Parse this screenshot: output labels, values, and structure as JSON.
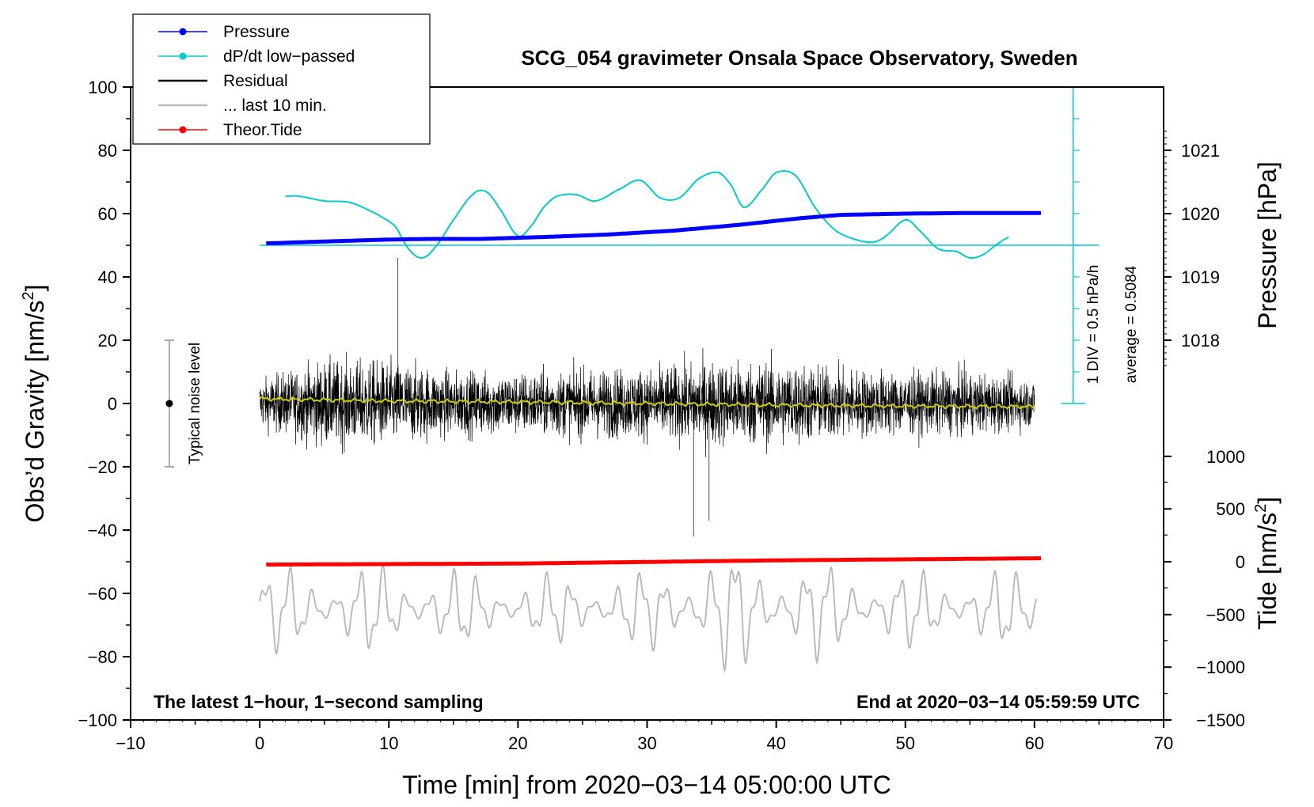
{
  "chart_data": {
    "type": "line",
    "title": "SCG_054 gravimeter Onsala Space Observatory, Sweden",
    "xlabel": "Time [min] from 2020−03−14 05:00:00 UTC",
    "ylabel": "Obs’d Gravity [nm/s²]",
    "ylabel_base": "Obs’d Gravity [nm/s",
    "ylabel_sup": "2",
    "ylabel_close": "]",
    "y2label": "Pressure [hPa]",
    "y3label_base": "Tide [nm/s",
    "y3label_sup": "2",
    "y3label_close": "]",
    "xlim": [
      -10,
      70
    ],
    "ylim": [
      -100,
      100
    ],
    "x_ticks": [
      -10,
      0,
      10,
      20,
      30,
      40,
      50,
      60,
      70
    ],
    "x_tick_labels": [
      "−10",
      "0",
      "10",
      "20",
      "30",
      "40",
      "50",
      "60",
      "70"
    ],
    "y_ticks": [
      -100,
      -80,
      -60,
      -40,
      -20,
      0,
      20,
      40,
      60,
      80,
      100
    ],
    "y_tick_labels": [
      "−100",
      "−80",
      "−60",
      "−40",
      "−20",
      "0",
      "20",
      "40",
      "60",
      "80",
      "100"
    ],
    "pressure_axis": {
      "ticks": [
        1018,
        1019,
        1020,
        1021
      ],
      "tick_labels": [
        "1018",
        "1019",
        "1020",
        "1021"
      ],
      "gravity_equivalent": [
        20,
        40,
        60,
        80
      ]
    },
    "tide_axis": {
      "ticks": [
        -1500,
        -1000,
        -500,
        0,
        500,
        1000
      ],
      "tick_labels": [
        "−1500",
        "−1000",
        "−500",
        "0",
        "500",
        "1000"
      ],
      "gravity_equivalent": [
        -100,
        -83.3,
        -66.7,
        -50,
        -33.3,
        -16.7
      ]
    },
    "legend": [
      {
        "label": "Pressure",
        "color": "#0000ff",
        "marker": true
      },
      {
        "label": "dP/dt low−passed",
        "color": "#00cccc",
        "marker": true
      },
      {
        "label": "Residual",
        "color": "#000000",
        "marker": false
      },
      {
        "label": "... last 10 min.",
        "color": "#bbbbbb",
        "marker": false
      },
      {
        "label": "Theor.Tide",
        "color": "#ff0000",
        "marker": true
      }
    ],
    "legend_position": "top-left",
    "series": [
      {
        "name": "Pressure",
        "color": "#0000ff",
        "units": "hPa",
        "x": [
          0.5,
          5,
          10,
          13,
          17,
          22,
          27,
          32,
          37,
          42,
          45,
          50,
          55,
          60.5
        ],
        "values": [
          1019.53,
          1019.56,
          1019.59,
          1019.6,
          1019.6,
          1019.63,
          1019.67,
          1019.73,
          1019.82,
          1019.93,
          1019.98,
          1020.0,
          1020.01,
          1020.01
        ]
      },
      {
        "name": "dP/dt low−passed",
        "color": "#00cccc",
        "units": "gravity-axis position",
        "x": [
          2,
          3,
          5,
          7,
          9,
          10.5,
          11.5,
          12.5,
          13.5,
          15,
          16.5,
          17.5,
          18.5,
          20,
          21,
          22,
          23,
          24.5,
          26,
          28,
          29.5,
          31,
          32.5,
          34,
          35.5,
          36.5,
          37.5,
          39,
          40,
          41.5,
          43,
          44.5,
          46,
          47.5,
          48.5,
          50,
          51,
          52.5,
          54,
          55,
          56,
          57,
          58
        ],
        "values": [
          65.5,
          65.5,
          64,
          63.5,
          60,
          56,
          49,
          46,
          49,
          58,
          66,
          67,
          62,
          53,
          56,
          62,
          65.5,
          66,
          64,
          68,
          70.5,
          65,
          65,
          71,
          73,
          69,
          62,
          68,
          73,
          72,
          62,
          55,
          52,
          51,
          53,
          58,
          55,
          49,
          48,
          46,
          47,
          50,
          52.5
        ]
      },
      {
        "name": "Residual",
        "color": "#000000",
        "units": "nm/s2",
        "envelope_x": [
          0,
          5,
          10,
          15,
          20,
          25,
          30,
          35,
          40,
          45,
          50,
          55,
          60
        ],
        "envelope_amplitude": [
          17,
          30,
          30,
          23,
          22,
          24,
          25,
          30,
          30,
          25,
          22,
          22,
          17
        ],
        "peak_max": 46,
        "peak_min": -42
      },
      {
        "name": "Residual smoothed",
        "color": "#cccc00",
        "units": "nm/s2",
        "x": [
          0,
          10,
          20,
          30,
          40,
          50,
          60
        ],
        "values": [
          1.5,
          0.8,
          0.5,
          0,
          -0.5,
          -0.8,
          -1
        ]
      },
      {
        "name": "... last 10 min.",
        "color": "#bbbbbb",
        "units": "gravity-axis position",
        "center": -65,
        "amplitude_x": [
          0,
          10,
          20,
          30,
          35,
          40,
          45,
          50,
          60
        ],
        "amplitude": [
          15,
          16,
          12,
          14,
          22,
          20,
          16,
          14,
          14
        ]
      },
      {
        "name": "Theor.Tide",
        "color": "#ff0000",
        "units": "nm/s2",
        "x": [
          0.5,
          20,
          40,
          60.5
        ],
        "values": [
          -30,
          -20,
          10,
          30
        ]
      }
    ],
    "annotations": {
      "noise_label": "Typical noise level",
      "noise_range": [
        -20,
        20
      ],
      "noise_x": -7,
      "dpdt_scale": "1 DIV = 0.5 hPa/h",
      "dpdt_average": "average = 0.5084",
      "dpdt_baseline": 50,
      "dpdt_scale_x": 63,
      "dpdt_scale_range": [
        0,
        100
      ],
      "bottom_left": "The latest 1−hour, 1−second sampling",
      "bottom_right": "End at 2020−03−14 05:59:59 UTC"
    }
  }
}
